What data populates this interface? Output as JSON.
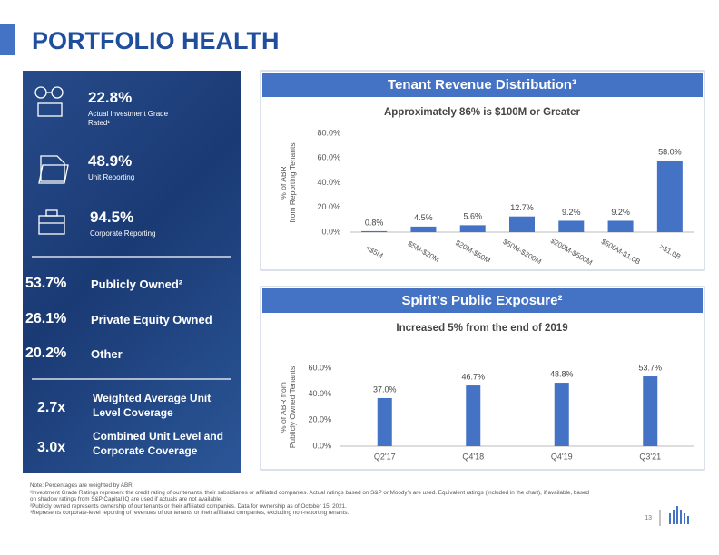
{
  "header": {
    "title": "PORTFOLIO HEALTH"
  },
  "left_panel": {
    "stats": [
      {
        "value": "22.8%",
        "label": "Actual Investment Grade Rated¹"
      },
      {
        "value": "48.9%",
        "label": "Unit Reporting"
      },
      {
        "value": "94.5%",
        "label": "Corporate Reporting"
      }
    ],
    "ownership": [
      {
        "value": "53.7%",
        "label": "Publicly Owned²"
      },
      {
        "value": "26.1%",
        "label": "Private Equity Owned"
      },
      {
        "value": "20.2%",
        "label": "Other"
      }
    ],
    "coverage": [
      {
        "value": "2.7x",
        "label": "Weighted Average Unit Level Coverage"
      },
      {
        "value": "3.0x",
        "label": "Combined Unit Level and Corporate Coverage"
      }
    ]
  },
  "chart_data": [
    {
      "type": "bar",
      "title": "Tenant Revenue Distribution³",
      "subtitle": "Approximately 86% is $100M or Greater",
      "y_label": "% of ABR from Reporting Tenants",
      "categories": [
        "<$5M",
        "$5M-$20M",
        "$20M-$50M",
        "$50M-$200M",
        "$200M-$500M",
        "$500M-$1.0B",
        ">$1.0B"
      ],
      "values": [
        0.8,
        4.5,
        5.6,
        12.7,
        9.2,
        9.2,
        58.0
      ],
      "value_labels": [
        "0.8%",
        "4.5%",
        "5.6%",
        "12.7%",
        "9.2%",
        "9.2%",
        "58.0%"
      ],
      "color": "#4472c4",
      "grid": false,
      "ylim": [
        0,
        80
      ],
      "yticks": [
        {
          "value": 0,
          "label": "0.0%"
        },
        {
          "value": 20,
          "label": "20.0%"
        },
        {
          "value": 40,
          "label": "40.0%"
        },
        {
          "value": 60,
          "label": "60.0%"
        },
        {
          "value": 80,
          "label": "80.0%"
        }
      ]
    },
    {
      "type": "bar",
      "title": "Spirit’s Public Exposure²",
      "subtitle": "Increased 5% from the end of 2019",
      "y_label": "% of ABR from Publicly Owned Tenants",
      "categories": [
        "Q2'17",
        "Q4'18",
        "Q4'19",
        "Q3'21"
      ],
      "values": [
        37.0,
        46.7,
        48.8,
        53.7
      ],
      "value_labels": [
        "37.0%",
        "46.7%",
        "48.8%",
        "53.7%"
      ],
      "color": "#4472c4",
      "grid": false,
      "ylim": [
        0,
        60
      ],
      "yticks": [
        {
          "value": 0,
          "label": "0.0%"
        },
        {
          "value": 20,
          "label": "20.0%"
        },
        {
          "value": 40,
          "label": "40.0%"
        },
        {
          "value": 60,
          "label": "60.0%"
        }
      ]
    }
  ],
  "footnotes": [
    "Note: Percentages are weighted by ABR.",
    "¹Investment Grade Ratings represent the credit rating of our tenants, their subsidiaries or affiliated companies. Actual ratings based on S&P or Moody’s are used. Equivalent ratings (included in the chart), if available, based on shadow ratings from S&P Capital IQ are used if actuals are not available.",
    "²Publicly owned represents ownership of our tenants or their affiliated companies. Data for ownership as of October 15, 2021.",
    "³Represents corporate-level reporting of revenues of our tenants or their affiliated companies, excluding non-reporting tenants."
  ],
  "page_number": "13"
}
